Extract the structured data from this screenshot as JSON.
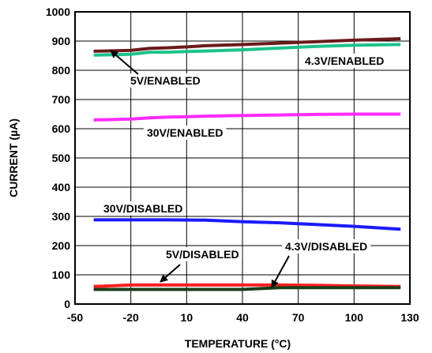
{
  "chart_data": {
    "type": "line",
    "xlabel": "TEMPERATURE (°C)",
    "ylabel": "CURRENT (µA)",
    "xlim": [
      -50,
      130
    ],
    "ylim": [
      0,
      1000
    ],
    "xticks": [
      -50,
      -20,
      10,
      40,
      70,
      100,
      130
    ],
    "yticks": [
      0,
      100,
      200,
      300,
      400,
      500,
      600,
      700,
      800,
      900,
      1000
    ],
    "xtick_labels": [
      "-50",
      "-20",
      "10",
      "40",
      "70",
      "100",
      "130"
    ],
    "ytick_labels": [
      "0",
      "100",
      "200",
      "300",
      "400",
      "500",
      "600",
      "700",
      "800",
      "900",
      "1000"
    ],
    "grid": true,
    "series": [
      {
        "name": "5V/ENABLED",
        "color": "#6b1a1a",
        "x": [
          -40,
          -20,
          -10,
          0,
          10,
          20,
          40,
          60,
          80,
          100,
          125
        ],
        "y": [
          865,
          868,
          875,
          877,
          880,
          884,
          888,
          893,
          898,
          903,
          908
        ]
      },
      {
        "name": "4.3V/ENABLED",
        "color": "#1ec28b",
        "x": [
          -40,
          -20,
          -10,
          0,
          10,
          20,
          40,
          60,
          80,
          100,
          125
        ],
        "y": [
          852,
          855,
          862,
          862,
          864,
          866,
          870,
          876,
          882,
          886,
          888
        ]
      },
      {
        "name": "30V/ENABLED",
        "color": "#ff2bff",
        "x": [
          -40,
          -20,
          -10,
          0,
          10,
          20,
          40,
          60,
          80,
          100,
          125
        ],
        "y": [
          630,
          633,
          637,
          640,
          641,
          643,
          645,
          647,
          649,
          650,
          650
        ]
      },
      {
        "name": "30V/DISABLED",
        "color": "#1a1aff",
        "x": [
          -40,
          -20,
          0,
          20,
          40,
          60,
          80,
          100,
          125
        ],
        "y": [
          288,
          288,
          288,
          287,
          282,
          278,
          272,
          266,
          256
        ]
      },
      {
        "name": "5V/DISABLED",
        "color": "#ff2020",
        "x": [
          -40,
          -20,
          0,
          20,
          40,
          60,
          80,
          100,
          125
        ],
        "y": [
          60,
          65,
          65,
          65,
          65,
          65,
          64,
          62,
          60
        ]
      },
      {
        "name": "4.3V/DISABLED",
        "color": "#1a3d1a",
        "x": [
          -40,
          -20,
          0,
          20,
          40,
          60,
          80,
          100,
          125
        ],
        "y": [
          50,
          50,
          50,
          50,
          50,
          56,
          56,
          56,
          56
        ]
      }
    ],
    "annotations": [
      {
        "text": "5V/ENABLED",
        "series": 0
      },
      {
        "text": "4.3V/ENABLED",
        "series": 1
      },
      {
        "text": "30V/ENABLED",
        "series": 2
      },
      {
        "text": "30V/DISABLED",
        "series": 3
      },
      {
        "text": "5V/DISABLED",
        "series": 4
      },
      {
        "text": "4.3V/DISABLED",
        "series": 5
      }
    ]
  }
}
